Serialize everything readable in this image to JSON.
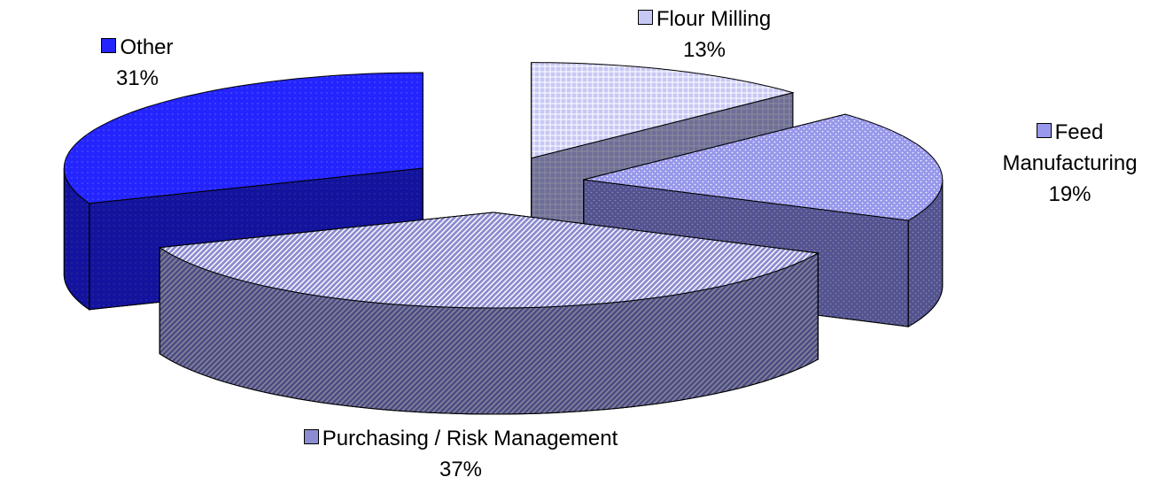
{
  "chart_data": {
    "type": "pie3d",
    "categories": [
      "Flour Milling",
      "Feed Manufacturing",
      "Purchasing / Risk Management",
      "Other"
    ],
    "values": [
      13,
      19,
      37,
      31
    ],
    "value_labels": [
      "13%",
      "19%",
      "37%",
      "31%"
    ],
    "colors": [
      "#c8c8f4",
      "#9898ec",
      "#8c8cd0",
      "#2424ff"
    ]
  }
}
